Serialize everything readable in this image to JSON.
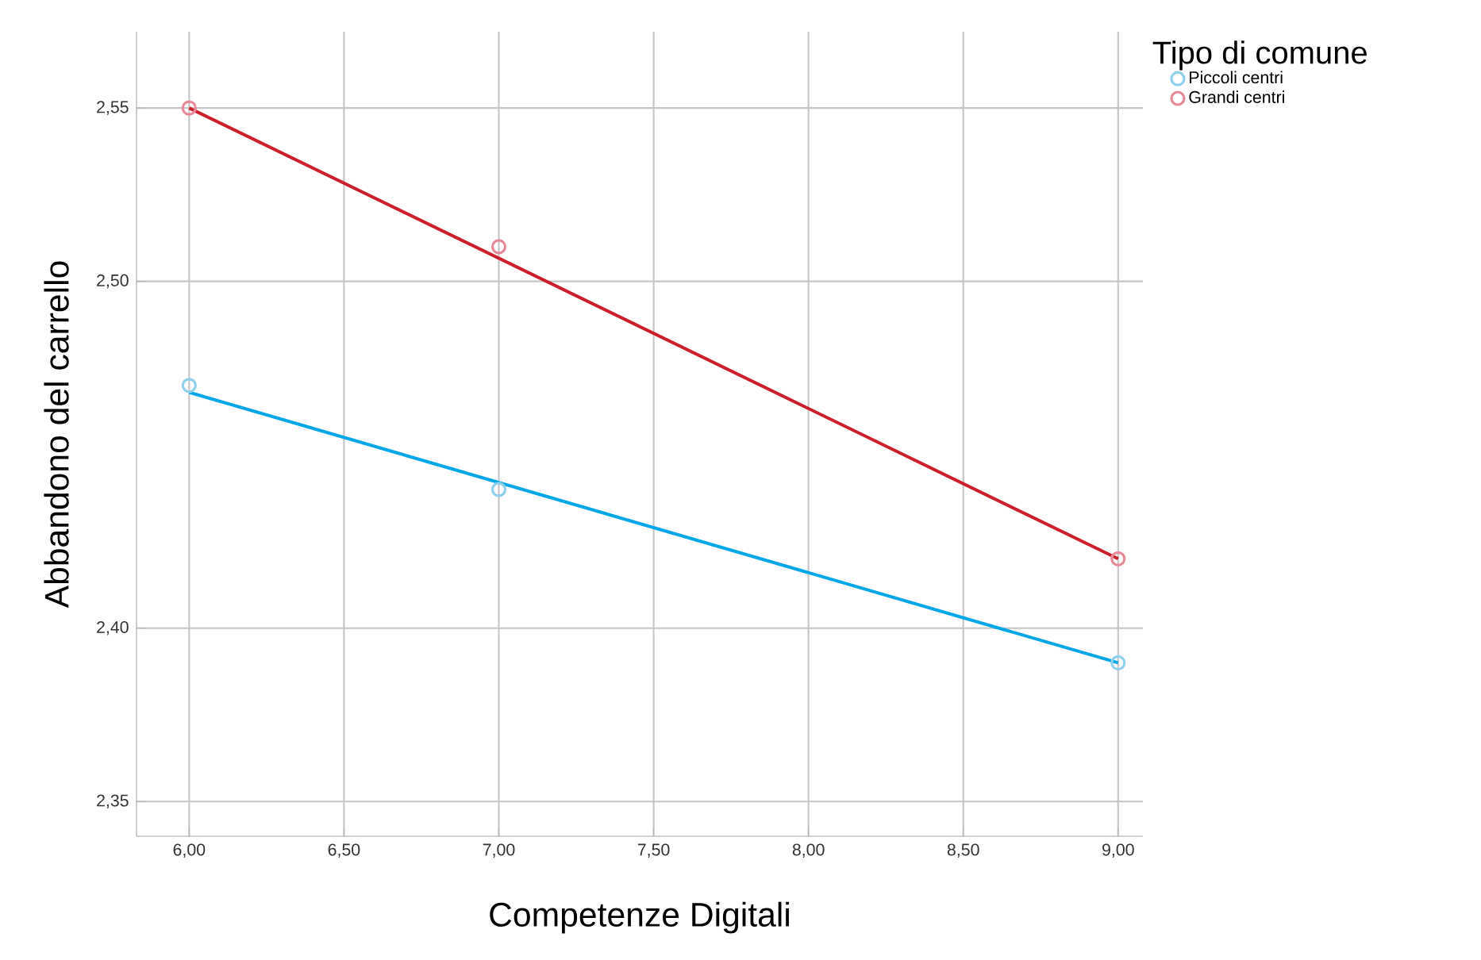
{
  "chart_data": {
    "type": "scatter",
    "xlabel": "Competenze Digitali",
    "ylabel": "Abbandono del carrello",
    "legend_title": "Tipo di comune",
    "xlim": [
      5.83,
      9.08
    ],
    "ylim": [
      2.34,
      2.572
    ],
    "xticks": [
      {
        "value": 6,
        "label": "6,00"
      },
      {
        "value": 6.5,
        "label": "6,50"
      },
      {
        "value": 7,
        "label": "7,00"
      },
      {
        "value": 7.5,
        "label": "7,50"
      },
      {
        "value": 8,
        "label": "8,00"
      },
      {
        "value": 8.5,
        "label": "8,50"
      },
      {
        "value": 9,
        "label": "9,00"
      }
    ],
    "yticks": [
      {
        "value": 2.35,
        "label": "2,35"
      },
      {
        "value": 2.4,
        "label": "2,40"
      },
      {
        "value": 2.5,
        "label": "2,50"
      },
      {
        "value": 2.55,
        "label": "2,55"
      }
    ],
    "grid": true,
    "legend": "top right",
    "marker": "circle",
    "series": [
      {
        "name": "Piccoli centri",
        "color": "#8fd0ec",
        "x": [
          6,
          7,
          9
        ],
        "values": [
          2.47,
          2.44,
          2.39
        ]
      },
      {
        "name": "Grandi centri",
        "color": "#e8899a",
        "x": [
          6,
          7,
          9
        ],
        "values": [
          2.55,
          2.51,
          2.42
        ]
      },
      {
        "type": "line",
        "marker": "none",
        "color": "#00a6e6",
        "x": [
          6,
          9
        ],
        "values": [
          2.468,
          2.39
        ]
      },
      {
        "type": "line",
        "marker": "none",
        "color": "#cc1f2b",
        "x": [
          6,
          9
        ],
        "values": [
          2.55,
          2.42
        ]
      }
    ]
  }
}
